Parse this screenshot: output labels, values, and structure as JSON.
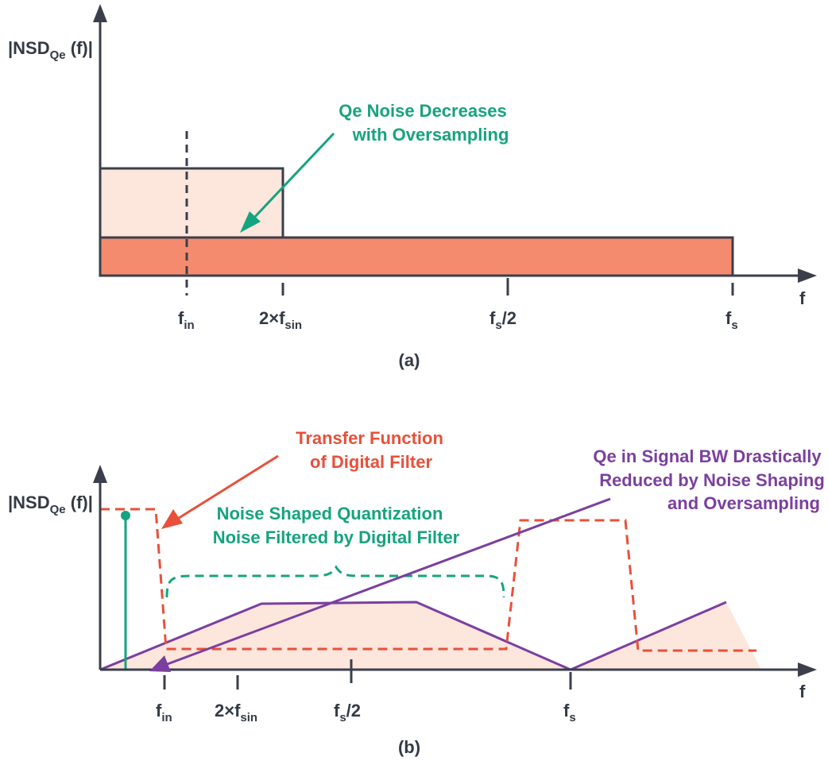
{
  "panel_a": {
    "ylabel": {
      "main": "|NSD",
      "sub": "Qe",
      "tail": " (f)|"
    },
    "xlabel": "f",
    "ticks": [
      {
        "main": "f",
        "sub": "in",
        "tail": ""
      },
      {
        "main": "2×f",
        "sub": "sin",
        "tail": ""
      },
      {
        "main": "f",
        "sub": "s",
        "tail": "/2"
      },
      {
        "main": "f",
        "sub": "s",
        "tail": ""
      }
    ],
    "annotation": [
      "Qe Noise Decreases",
      "with Oversampling"
    ],
    "caption": "(a)"
  },
  "panel_b": {
    "ylabel": {
      "main": "|NSD",
      "sub": "Qe",
      "tail": " (f)|"
    },
    "xlabel": "f",
    "ticks": [
      {
        "main": "f",
        "sub": "in",
        "tail": ""
      },
      {
        "main": "2×f",
        "sub": "sin",
        "tail": ""
      },
      {
        "main": "f",
        "sub": "s",
        "tail": "/2"
      },
      {
        "main": "f",
        "sub": "s",
        "tail": ""
      }
    ],
    "annotation_filter": [
      "Transfer Function",
      "of Digital Filter"
    ],
    "annotation_noise": [
      "Noise Shaped Quantization",
      "Noise Filtered by Digital Filter"
    ],
    "annotation_qe": [
      "Qe in Signal BW Drastically",
      "Reduced by Noise Shaping",
      "and Oversampling"
    ],
    "caption": "(b)"
  },
  "colors": {
    "axis": "#3a3f4b",
    "light_fill": "#fde6dc",
    "dark_fill": "#f48b6e",
    "green": "#16a37f",
    "red": "#e8503a",
    "purple": "#7b3f9e"
  }
}
